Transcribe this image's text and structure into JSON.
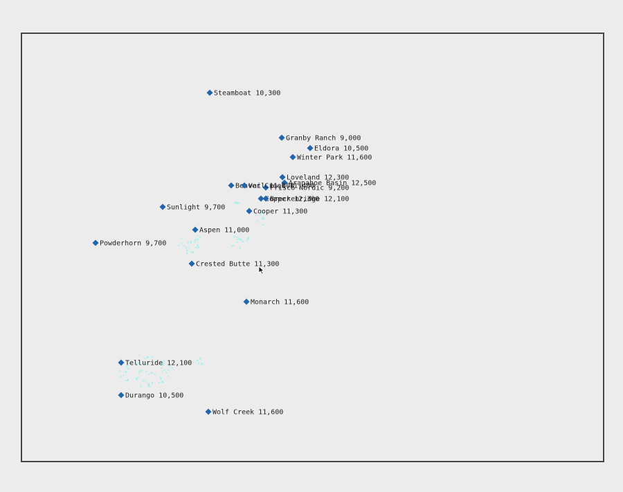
{
  "map": {
    "marker_color": "#2166ac",
    "label_color": "#222222",
    "snow_color": "#9ff0ee"
  },
  "resorts": [
    {
      "name": "Steamboat",
      "elevation": "10,300"
    },
    {
      "name": "Granby Ranch",
      "elevation": "9,000"
    },
    {
      "name": "Eldora",
      "elevation": "10,500"
    },
    {
      "name": "Winter Park",
      "elevation": "11,600"
    },
    {
      "name": "Loveland",
      "elevation": "12,300"
    },
    {
      "name": "Arapahoe Basin",
      "elevation": "12,500"
    },
    {
      "name": "Frisco Nordic",
      "elevation": "9,200"
    },
    {
      "name": "Beaver Creek",
      "elevation": "11,400"
    },
    {
      "name": "Vail",
      "elevation": "11,600"
    },
    {
      "name": "Copper",
      "elevation": "12,300"
    },
    {
      "name": "Breckenridge",
      "elevation": "12,100"
    },
    {
      "name": "Cooper",
      "elevation": "11,300"
    },
    {
      "name": "Sunlight",
      "elevation": "9,700"
    },
    {
      "name": "Aspen",
      "elevation": "11,000"
    },
    {
      "name": "Powderhorn",
      "elevation": "9,700"
    },
    {
      "name": "Crested Butte",
      "elevation": "11,300"
    },
    {
      "name": "Monarch",
      "elevation": "11,600"
    },
    {
      "name": "Telluride",
      "elevation": "12,100"
    },
    {
      "name": "Durango",
      "elevation": "10,500"
    },
    {
      "name": "Wolf Creek",
      "elevation": "11,600"
    }
  ]
}
